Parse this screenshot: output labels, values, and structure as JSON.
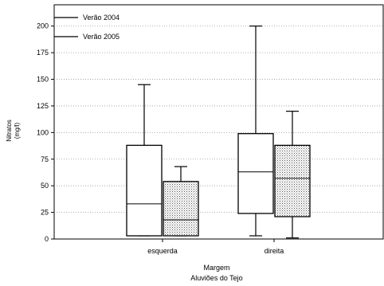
{
  "chart_data": {
    "type": "boxplot",
    "title": "",
    "ylabel": "Nitratos\n(mg/l)",
    "xlabel": "Margem",
    "subtitle": "Aluviões do Tejo",
    "categories": [
      "esquerda",
      "direita"
    ],
    "ylim": [
      0,
      220
    ],
    "yticks": [
      0,
      25,
      50,
      75,
      100,
      125,
      150,
      175,
      200
    ],
    "grid": true,
    "legend_position": "top-left",
    "series": [
      {
        "name": "Verão 2004",
        "fill": "#ffffff",
        "pattern": "none",
        "boxes": [
          {
            "category": "esquerda",
            "min": 3,
            "q1": 3,
            "median": 33,
            "q3": 88,
            "max": 145
          },
          {
            "category": "direita",
            "min": 3,
            "q1": 24,
            "median": 63,
            "q3": 99,
            "max": 200
          }
        ]
      },
      {
        "name": "Verão 2005",
        "fill": "#ffffff",
        "pattern": "dotted",
        "boxes": [
          {
            "category": "esquerda",
            "min": 3,
            "q1": 3,
            "median": 18,
            "q3": 54,
            "max": 68
          },
          {
            "category": "direita",
            "min": 1,
            "q1": 21,
            "median": 57,
            "q3": 88,
            "max": 120
          }
        ]
      }
    ]
  }
}
